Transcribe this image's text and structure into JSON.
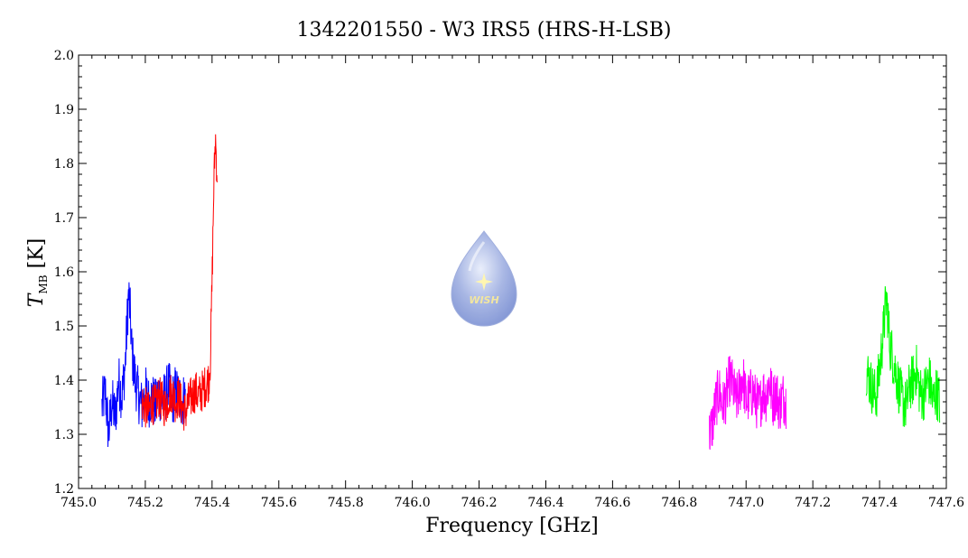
{
  "chart_data": {
    "type": "line",
    "title": "1342201550 - W3 IRS5 (HRS-H-LSB)",
    "xlabel": "Frequency [GHz]",
    "ylabel_main": "T",
    "ylabel_sub": "MB",
    "ylabel_unit": " [K]",
    "xlim": [
      745.0,
      747.6
    ],
    "ylim": [
      1.2,
      2.0
    ],
    "x_ticks": [
      745.0,
      745.2,
      745.4,
      745.6,
      745.8,
      746.0,
      746.2,
      746.4,
      746.6,
      746.8,
      747.0,
      747.2,
      747.4,
      747.6
    ],
    "x_tick_labels": [
      "745.0",
      "745.2",
      "745.4",
      "745.6",
      "745.8",
      "746.0",
      "746.2",
      "746.4",
      "746.6",
      "746.8",
      "747.0",
      "747.2",
      "747.4",
      "747.6"
    ],
    "y_ticks": [
      1.2,
      1.3,
      1.4,
      1.5,
      1.6,
      1.7,
      1.8,
      1.9,
      2.0
    ],
    "y_tick_labels": [
      "1.2",
      "1.3",
      "1.4",
      "1.5",
      "1.6",
      "1.7",
      "1.8",
      "1.9",
      "2.0"
    ],
    "grid": false,
    "logo_text": "WISH",
    "series": [
      {
        "color": "#0000ff",
        "x": [
          745.07,
          745.08,
          745.09,
          745.1,
          745.11,
          745.12,
          745.13,
          745.14,
          745.145,
          745.15,
          745.155,
          745.16,
          745.17,
          745.18,
          745.19,
          745.2,
          745.21,
          745.22,
          745.23,
          745.24,
          745.25,
          745.26,
          745.27,
          745.28,
          745.29,
          745.3,
          745.31,
          745.32
        ],
        "y": [
          1.35,
          1.38,
          1.3,
          1.36,
          1.33,
          1.4,
          1.37,
          1.43,
          1.5,
          1.56,
          1.52,
          1.45,
          1.4,
          1.37,
          1.35,
          1.38,
          1.36,
          1.37,
          1.35,
          1.38,
          1.36,
          1.37,
          1.39,
          1.36,
          1.38,
          1.37,
          1.36,
          1.37
        ],
        "spread": 0.05
      },
      {
        "color": "#ff0000",
        "x": [
          745.19,
          745.2,
          745.21,
          745.22,
          745.23,
          745.24,
          745.25,
          745.26,
          745.27,
          745.28,
          745.29,
          745.3,
          745.31,
          745.32,
          745.33,
          745.34,
          745.35,
          745.36,
          745.37,
          745.38,
          745.39,
          745.395,
          745.4,
          745.405,
          745.41,
          745.415
        ],
        "y": [
          1.36,
          1.35,
          1.34,
          1.36,
          1.35,
          1.37,
          1.36,
          1.35,
          1.37,
          1.38,
          1.36,
          1.37,
          1.35,
          1.34,
          1.36,
          1.37,
          1.38,
          1.37,
          1.38,
          1.39,
          1.4,
          1.44,
          1.58,
          1.75,
          1.85,
          1.78
        ],
        "spread": 0.04
      },
      {
        "color": "#ff00ff",
        "x": [
          746.89,
          746.9,
          746.91,
          746.92,
          746.93,
          746.94,
          746.95,
          746.96,
          746.97,
          746.98,
          746.99,
          747.0,
          747.01,
          747.02,
          747.03,
          747.04,
          747.05,
          747.06,
          747.07,
          747.08,
          747.09,
          747.1,
          747.11,
          747.12
        ],
        "y": [
          1.3,
          1.32,
          1.36,
          1.38,
          1.35,
          1.37,
          1.4,
          1.39,
          1.36,
          1.38,
          1.41,
          1.36,
          1.37,
          1.38,
          1.36,
          1.35,
          1.38,
          1.37,
          1.4,
          1.36,
          1.38,
          1.35,
          1.37,
          1.36
        ],
        "spread": 0.05
      },
      {
        "color": "#00ff00",
        "x": [
          747.36,
          747.37,
          747.38,
          747.39,
          747.4,
          747.41,
          747.42,
          747.425,
          747.43,
          747.44,
          747.45,
          747.46,
          747.47,
          747.48,
          747.49,
          747.5,
          747.51,
          747.52,
          747.53,
          747.54,
          747.55,
          747.56,
          747.57,
          747.58
        ],
        "y": [
          1.42,
          1.4,
          1.38,
          1.37,
          1.42,
          1.48,
          1.55,
          1.52,
          1.47,
          1.44,
          1.41,
          1.38,
          1.36,
          1.35,
          1.39,
          1.4,
          1.42,
          1.38,
          1.37,
          1.39,
          1.4,
          1.36,
          1.38,
          1.36
        ],
        "spread": 0.05
      }
    ]
  }
}
